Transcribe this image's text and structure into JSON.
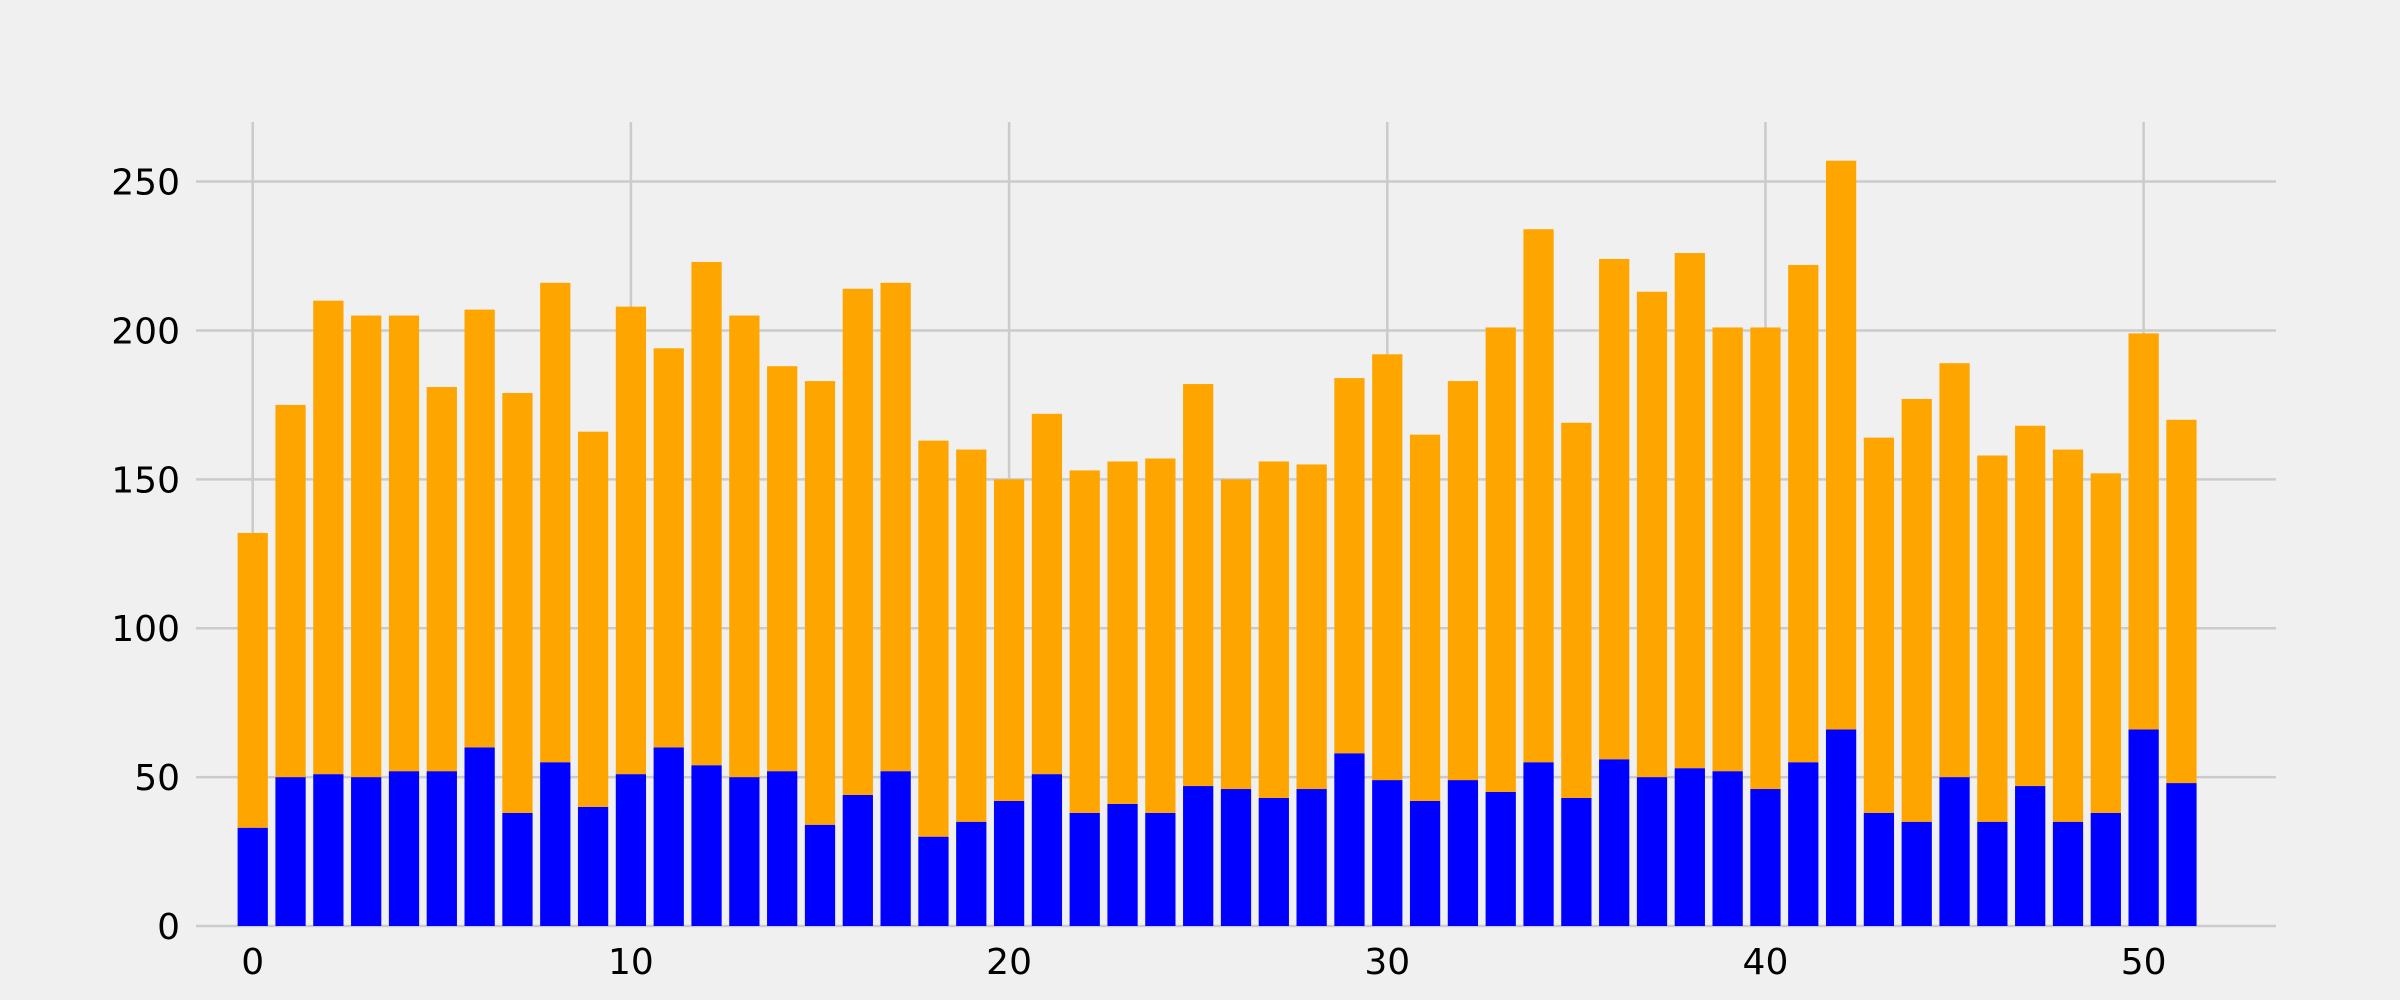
{
  "chart_data": {
    "type": "bar",
    "stacked": true,
    "title": "",
    "xlabel": "",
    "ylabel": "",
    "x": [
      0,
      1,
      2,
      3,
      4,
      5,
      6,
      7,
      8,
      9,
      10,
      11,
      12,
      13,
      14,
      15,
      16,
      17,
      18,
      19,
      20,
      21,
      22,
      23,
      24,
      25,
      26,
      27,
      28,
      29,
      30,
      31,
      32,
      33,
      34,
      35,
      36,
      37,
      38,
      39,
      40,
      41,
      42,
      43,
      44,
      45,
      46,
      47,
      48,
      49,
      50,
      51
    ],
    "series": [
      {
        "color": "#0000ff",
        "values": [
          33,
          50,
          51,
          50,
          52,
          52,
          60,
          38,
          55,
          40,
          51,
          60,
          54,
          50,
          52,
          34,
          44,
          52,
          30,
          35,
          42,
          51,
          38,
          41,
          38,
          47,
          46,
          43,
          46,
          58,
          49,
          42,
          49,
          45,
          55,
          43,
          56,
          50,
          53,
          52,
          46,
          55,
          66,
          38,
          35,
          50,
          35,
          47,
          35,
          38,
          66,
          48
        ]
      },
      {
        "color": "#ffa500",
        "values": [
          99,
          125,
          159,
          155,
          153,
          129,
          147,
          141,
          161,
          126,
          157,
          134,
          169,
          155,
          136,
          149,
          170,
          164,
          133,
          125,
          108,
          121,
          115,
          115,
          119,
          135,
          104,
          113,
          109,
          126,
          143,
          123,
          134,
          156,
          179,
          126,
          168,
          163,
          173,
          149,
          155,
          167,
          191,
          126,
          142,
          139,
          123,
          121,
          125,
          114,
          133,
          122
        ]
      }
    ],
    "xlim": [
      -1.5,
      53.5
    ],
    "ylim": [
      0,
      270
    ],
    "xticks": [
      "0",
      "10",
      "20",
      "30",
      "40",
      "50"
    ],
    "yticks": [
      "0",
      "50",
      "100",
      "150",
      "200",
      "250"
    ],
    "grid": true,
    "background": "#f0f0f0",
    "grid_color": "#cbcbcb"
  }
}
